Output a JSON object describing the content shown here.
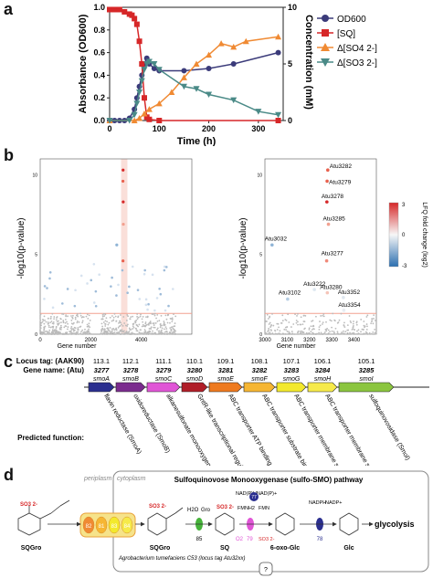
{
  "panels": {
    "a": "a",
    "b": "b",
    "c": "c",
    "d": "d"
  },
  "chart_data": [
    {
      "type": "line",
      "panel": "a",
      "xlabel": "Time (h)",
      "ylabel": "Absorbance (OD600)",
      "y2label": "Concentration (mM)",
      "xlim": [
        0,
        350
      ],
      "ylim": [
        0,
        1.0
      ],
      "y2lim": [
        0,
        10
      ],
      "xticks": [
        0,
        100,
        200,
        300
      ],
      "yticks": [
        0.0,
        0.2,
        0.4,
        0.6,
        0.8,
        1.0
      ],
      "y2ticks": [
        0,
        5,
        10
      ],
      "legend": "top-right",
      "series": [
        {
          "name": "OD600",
          "axis": "left",
          "color": "#3b3b7a",
          "marker": "circle",
          "x": [
            0,
            10,
            20,
            30,
            40,
            50,
            55,
            60,
            65,
            70,
            75,
            80,
            90,
            100,
            150,
            200,
            250,
            340
          ],
          "y": [
            0.0,
            0.0,
            0.0,
            0.0,
            0.02,
            0.1,
            0.2,
            0.3,
            0.4,
            0.5,
            0.55,
            0.5,
            0.46,
            0.44,
            0.44,
            0.46,
            0.5,
            0.6
          ]
        },
        {
          "name": "[SQ]",
          "axis": "right",
          "color": "#d62728",
          "marker": "square",
          "x": [
            0,
            10,
            20,
            30,
            40,
            45,
            50,
            55,
            60,
            65,
            70,
            75,
            80,
            100,
            340
          ],
          "y": [
            9.8,
            9.8,
            9.8,
            9.6,
            9.4,
            9.3,
            9.0,
            8.5,
            7.0,
            5.0,
            2.0,
            0.3,
            0.1,
            0.0,
            0.0
          ]
        },
        {
          "name": "Δ[SO4 2-]",
          "axis": "right",
          "color": "#f08a33",
          "marker": "triangle-up",
          "x": [
            0,
            50,
            60,
            70,
            80,
            100,
            125,
            150,
            175,
            200,
            225,
            250,
            275,
            340
          ],
          "y": [
            0.0,
            0.0,
            0.2,
            0.6,
            1.0,
            1.5,
            2.5,
            3.8,
            5.0,
            5.8,
            6.8,
            6.5,
            7.0,
            7.4
          ]
        },
        {
          "name": "Δ[SO3 2-]",
          "axis": "right",
          "color": "#4a8a87",
          "marker": "triangle-down",
          "x": [
            0,
            40,
            50,
            55,
            60,
            65,
            70,
            75,
            80,
            90,
            100,
            150,
            175,
            200,
            250,
            300,
            340
          ],
          "y": [
            0.0,
            0.0,
            0.5,
            1.5,
            2.5,
            3.5,
            4.5,
            5.0,
            5.2,
            5.0,
            4.5,
            3.0,
            2.8,
            2.3,
            1.8,
            0.8,
            0.5
          ]
        }
      ]
    },
    {
      "type": "scatter",
      "panel": "b-left",
      "xlabel": "Gene number",
      "ylabel": "-log10(p-value)",
      "xlim": [
        0,
        6000
      ],
      "ylim": [
        0,
        11
      ],
      "xticks": [
        0,
        2000,
        4000
      ],
      "yticks": [
        0,
        5,
        10
      ],
      "threshold": 1.3,
      "highlight_band_x": [
        3200,
        3450
      ]
    },
    {
      "type": "scatter",
      "panel": "b-right",
      "xlabel": "Gene number",
      "ylabel": "-log10(p-value)",
      "xlim": [
        3000,
        3500
      ],
      "ylim": [
        0,
        11
      ],
      "xticks": [
        3000,
        3100,
        3200,
        3300,
        3400
      ],
      "yticks": [
        0,
        5,
        10
      ],
      "threshold": 1.3,
      "colorbar": {
        "label": "LFQ fold change (log2)",
        "ticks": [
          -3,
          0,
          3
        ]
      },
      "labeled_points": [
        {
          "label": "Atu3282",
          "x": 3282,
          "y": 10.3,
          "color": "#e8604d"
        },
        {
          "label": "Atu3279",
          "x": 3279,
          "y": 9.6,
          "color": "#e8604d"
        },
        {
          "label": "Atu3278",
          "x": 3278,
          "y": 8.3,
          "color": "#d62728"
        },
        {
          "label": "Atu3285",
          "x": 3285,
          "y": 6.9,
          "color": "#f2a08f"
        },
        {
          "label": "Atu3032",
          "x": 3032,
          "y": 5.6,
          "color": "#8fb4d6"
        },
        {
          "label": "Atu3277",
          "x": 3277,
          "y": 4.6,
          "color": "#f08a7a"
        },
        {
          "label": "Atu3102",
          "x": 3102,
          "y": 2.2,
          "color": "#b5cde3"
        },
        {
          "label": "Atu3222",
          "x": 3222,
          "y": 2.8,
          "color": "#dde7f0"
        },
        {
          "label": "Atu3280",
          "x": 3280,
          "y": 2.6,
          "color": "#f5c4b8"
        },
        {
          "label": "Atu3352",
          "x": 3352,
          "y": 2.3,
          "color": "#dfe7ef"
        },
        {
          "label": "Atu3354",
          "x": 3354,
          "y": 1.5,
          "color": "#e7ecf2"
        }
      ]
    }
  ],
  "panel_c": {
    "locus_tag_label": "Locus tag: (AAK90)",
    "gene_name_label": "Gene name: (Atu)",
    "predicted_function_label": "Predicted function:",
    "genes": [
      {
        "locus": "113.1",
        "atu": "3277",
        "name": "smoA",
        "color": "#2b2f8f",
        "fn": "flavin reductase (SmoA)"
      },
      {
        "locus": "112.1",
        "atu": "3278",
        "name": "smoB",
        "color": "#7b2c8e",
        "fn": "oxidoreductase (SmoB)"
      },
      {
        "locus": "111.1",
        "atu": "3279",
        "name": "smoC",
        "color": "#e055d6",
        "fn": "alkanesulfonate monooxygenase (SmoC)"
      },
      {
        "locus": "110.1",
        "atu": "3280",
        "name": "smoD",
        "color": "#b01e28",
        "fn": "GntR-like transcriptional regulator (SmoD)"
      },
      {
        "locus": "109.1",
        "atu": "3281",
        "name": "smoE",
        "color": "#ee7a1f",
        "fn": "ABC transporter ATP binding domain (SmoE)"
      },
      {
        "locus": "108.1",
        "atu": "3282",
        "name": "smoF",
        "color": "#f6b633",
        "fn": "ABC transporter substrate binding domain (SmoF)"
      },
      {
        "locus": "107.1",
        "atu": "3283",
        "name": "smoG",
        "color": "#f3e92d",
        "fn": "ABC transporter membrane spanning domain (SmoG)"
      },
      {
        "locus": "106.1",
        "atu": "3284",
        "name": "smoH",
        "color": "#f6ea4a",
        "fn": "ABC transporter membrane spanning domain (SmoH)"
      },
      {
        "locus": "105.1",
        "atu": "3285",
        "name": "smoI",
        "color": "#8bc53f",
        "fn": "sulfoquinovosidase (SmoI)"
      }
    ]
  },
  "panel_d": {
    "periplasm": "periplasm",
    "cytoplasm": "cytoplasm",
    "pathway_title": "Sulfoquinovose Monooxygenase (sulfo-SMO) pathway",
    "sqgro_left": "SQGro",
    "sqgro_right": "SQGro",
    "sq": "SQ",
    "six_oxo": "6-oxo-Glc",
    "glc": "Glc",
    "glycolysis": "glycolysis",
    "transport_labels": [
      "82",
      "81",
      "83",
      "84"
    ],
    "h2o": "H2O",
    "gro": "Gro",
    "enz_85": "85",
    "nadp_h": "NAD(P)H",
    "nadp_plus": "NAD(P)+",
    "enz_77": "77",
    "fmn_h2": "FMNH2",
    "fmn": "FMN",
    "o2": "O2",
    "enz_79": "79",
    "so3": "SO3 2-",
    "nadph": "NADPH",
    "nadp": "NADP+",
    "enz_78": "78",
    "organism": "Agrobacterium tumefaciens C53 (locus tag Atu32xx)",
    "question": "?"
  },
  "legend_labels": {
    "od600": "OD600",
    "sq": "[SQ]",
    "so4": "Δ[SO4 2-]",
    "so3": "Δ[SO3 2-]"
  }
}
